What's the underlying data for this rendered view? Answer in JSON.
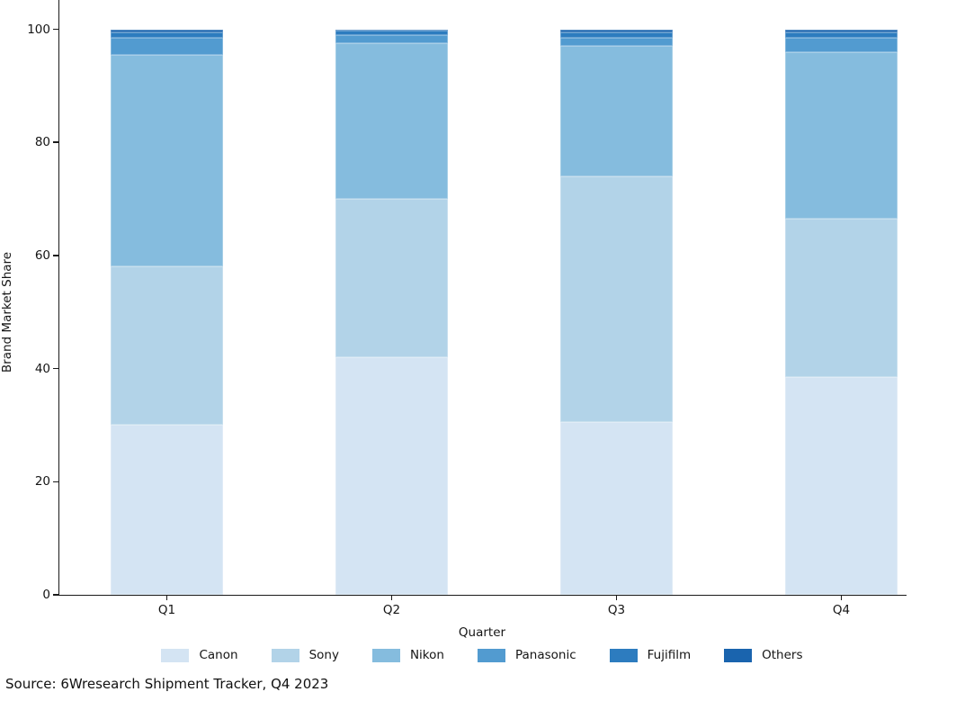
{
  "chart_data": {
    "type": "bar",
    "stacked": true,
    "title": "",
    "xlabel": "Quarter",
    "ylabel": "Brand Market Share",
    "categories": [
      "Q1",
      "Q2",
      "Q3",
      "Q4"
    ],
    "series": [
      {
        "name": "Canon",
        "color": "#d4e4f3",
        "values": [
          30.0,
          42.0,
          30.5,
          38.5
        ]
      },
      {
        "name": "Sony",
        "color": "#b2d3e8",
        "values": [
          28.0,
          28.0,
          43.5,
          28.0
        ]
      },
      {
        "name": "Nikon",
        "color": "#85bcde",
        "values": [
          37.5,
          27.5,
          23.0,
          29.5
        ]
      },
      {
        "name": "Panasonic",
        "color": "#529bd0",
        "values": [
          3.0,
          1.5,
          1.5,
          2.5
        ]
      },
      {
        "name": "Fujifilm",
        "color": "#2d7cbf",
        "values": [
          1.0,
          0.7,
          1.0,
          1.0
        ]
      },
      {
        "name": "Others",
        "color": "#1a64ae",
        "values": [
          0.5,
          0.3,
          0.5,
          0.5
        ]
      }
    ],
    "ylim": [
      0,
      100
    ],
    "yticks": [
      0,
      20,
      40,
      60,
      80,
      100
    ],
    "grid": false,
    "legend_position": "bottom",
    "axis_color": "#1a1a1a"
  },
  "source_note": "Source: 6Wresearch Shipment Tracker, Q4 2023"
}
